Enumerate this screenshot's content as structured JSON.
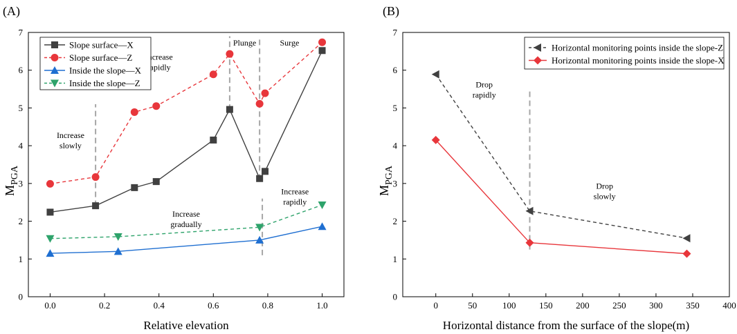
{
  "chart_data": [
    {
      "panel_label": "(A)",
      "type": "line",
      "xlabel": "Relative elevation",
      "ylabel_main": "M",
      "ylabel_sub": "PGA",
      "xlim": [
        -0.08,
        1.08
      ],
      "ylim": [
        0,
        7
      ],
      "xticks": [
        0.0,
        0.2,
        0.4,
        0.6,
        0.8,
        1.0
      ],
      "xtick_labels": [
        "0.0",
        "0.2",
        "0.4",
        "0.6",
        "0.8",
        "1.0"
      ],
      "yticks": [
        0,
        1,
        2,
        3,
        4,
        5,
        6,
        7
      ],
      "ytick_labels": [
        "0",
        "1",
        "2",
        "3",
        "4",
        "5",
        "6",
        "7"
      ],
      "legend_position": "top-left",
      "series": [
        {
          "name": "Slope surface—X",
          "color": "#404040",
          "dash": "solid",
          "marker": "square",
          "x": [
            0.0,
            0.167,
            0.31,
            0.39,
            0.6,
            0.66,
            0.77,
            0.79,
            1.0
          ],
          "y": [
            2.24,
            2.41,
            2.89,
            3.05,
            4.15,
            4.96,
            3.13,
            3.32,
            6.52
          ]
        },
        {
          "name": "Slope surface—Z",
          "color": "#e8363b",
          "dash": "dashed",
          "marker": "circle",
          "x": [
            0.0,
            0.167,
            0.31,
            0.39,
            0.6,
            0.66,
            0.77,
            0.79,
            1.0
          ],
          "y": [
            2.99,
            3.17,
            4.89,
            5.05,
            5.89,
            6.43,
            5.11,
            5.39,
            6.74
          ]
        },
        {
          "name": "Inside the slope—X",
          "color": "#1f6fd1",
          "dash": "solid",
          "marker": "triangle-up",
          "x": [
            0.0,
            0.25,
            0.77,
            1.0
          ],
          "y": [
            1.15,
            1.2,
            1.5,
            1.86
          ]
        },
        {
          "name": "Inside the slope—Z",
          "color": "#2ea36b",
          "dash": "dashed",
          "marker": "triangle-down",
          "x": [
            0.0,
            0.25,
            0.77,
            1.0
          ],
          "y": [
            1.54,
            1.59,
            1.84,
            2.43
          ]
        }
      ],
      "vlines": [
        {
          "x": 0.167,
          "y0": 2.4,
          "y1": 5.1
        },
        {
          "x": 0.66,
          "y0": 4.95,
          "y1": 6.9
        },
        {
          "x": 0.77,
          "y0": 3.1,
          "y1": 6.9
        },
        {
          "x": 0.78,
          "y0": 1.1,
          "y1": 2.6
        }
      ],
      "annotations": [
        {
          "lines": [
            "Increase",
            "slowly"
          ],
          "x": 0.075,
          "y": 4.2
        },
        {
          "lines": [
            "Increase",
            "rapidly"
          ],
          "x": 0.4,
          "y": 6.28
        },
        {
          "lines": [
            "Plunge"
          ],
          "x": 0.715,
          "y": 6.65
        },
        {
          "lines": [
            "Surge"
          ],
          "x": 0.88,
          "y": 6.65
        },
        {
          "lines": [
            "Increase",
            "gradually"
          ],
          "x": 0.5,
          "y": 2.12
        },
        {
          "lines": [
            "Increase",
            "rapidly"
          ],
          "x": 0.9,
          "y": 2.71
        }
      ]
    },
    {
      "panel_label": "(B)",
      "type": "line",
      "xlabel": "Horizontal distance from the surface of the slope(m)",
      "ylabel_main": "M",
      "ylabel_sub": "PGA",
      "xlim": [
        -45,
        400
      ],
      "ylim": [
        0,
        7
      ],
      "xticks": [
        0,
        50,
        100,
        150,
        200,
        250,
        300,
        350,
        400
      ],
      "xtick_labels": [
        "0",
        "50",
        "100",
        "150",
        "200",
        "250",
        "300",
        "350",
        "400"
      ],
      "yticks": [
        0,
        1,
        2,
        3,
        4,
        5,
        6,
        7
      ],
      "ytick_labels": [
        "0",
        "1",
        "2",
        "3",
        "4",
        "5",
        "6",
        "7"
      ],
      "legend_position": "top-right",
      "series": [
        {
          "name": "Horizontal monitoring points inside the slope-Z",
          "color": "#404040",
          "dash": "dashed",
          "marker": "triangle-left",
          "x": [
            0,
            128,
            342
          ],
          "y": [
            5.89,
            2.27,
            1.55
          ]
        },
        {
          "name": "Horizontal monitoring points inside the slope-X",
          "color": "#e8363b",
          "dash": "solid",
          "marker": "diamond",
          "x": [
            0,
            128,
            342
          ],
          "y": [
            4.15,
            1.43,
            1.14
          ]
        }
      ],
      "vlines": [
        {
          "x": 128,
          "y0": 1.25,
          "y1": 5.5
        }
      ],
      "annotations": [
        {
          "lines": [
            "Drop",
            "rapidly"
          ],
          "x": 66,
          "y": 5.55
        },
        {
          "lines": [
            "Drop",
            "slowly"
          ],
          "x": 230,
          "y": 2.86
        }
      ]
    }
  ]
}
